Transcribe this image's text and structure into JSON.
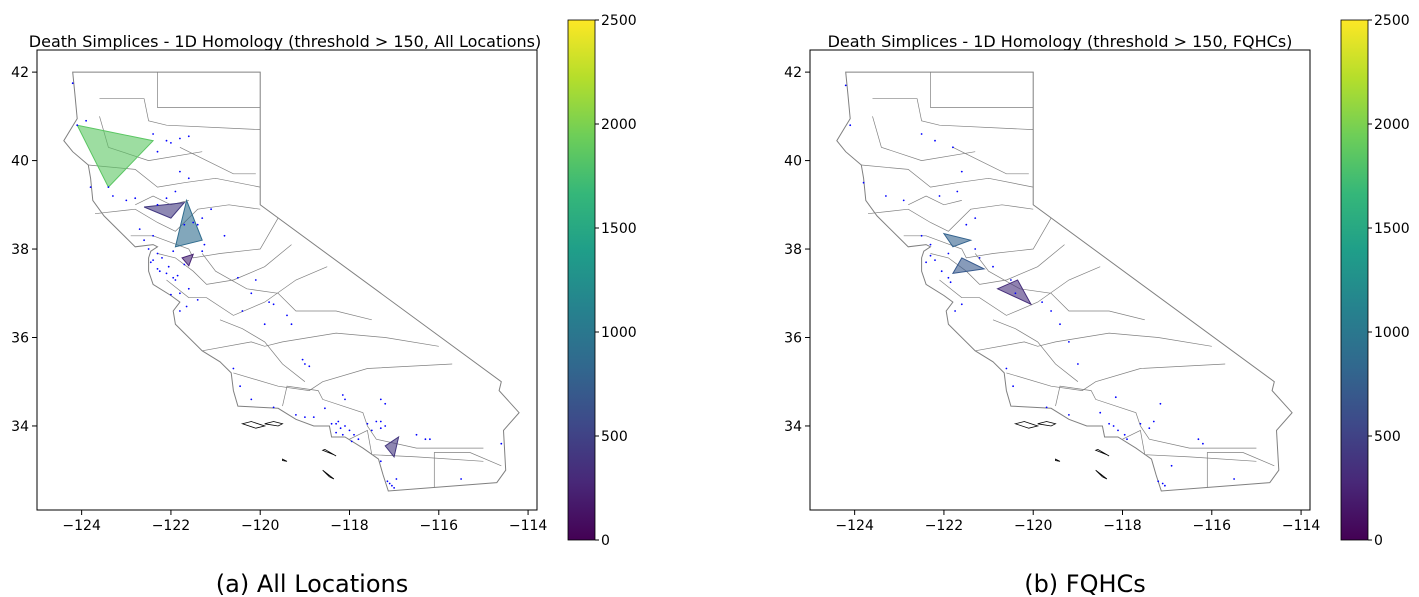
{
  "colorscale": {
    "name": "viridis",
    "stops": [
      "#440154",
      "#482878",
      "#3e4989",
      "#31688e",
      "#26828e",
      "#1f9e89",
      "#35b779",
      "#6ece58",
      "#b5de2b",
      "#fde725"
    ],
    "range": [
      0,
      2500
    ],
    "ticks": [
      "0",
      "500",
      "1000",
      "1500",
      "2000",
      "2500"
    ]
  },
  "point_color": "#0000ff",
  "boundary_color": "#808080",
  "chart_data": [
    {
      "type": "scatter",
      "title": "Death Simplices - 1D Homology (threshold > 150, All Locations)",
      "caption": "(a) All Locations",
      "xlim": [
        -125,
        -113.8
      ],
      "ylim": [
        32.1,
        42.5
      ],
      "xticks": [
        -124,
        -122,
        -120,
        -118,
        -116,
        -114
      ],
      "yticks": [
        34,
        36,
        38,
        40,
        42
      ],
      "xtick_labels": [
        "−124",
        "−122",
        "−120",
        "−118",
        "−116",
        "−114"
      ],
      "ytick_labels": [
        "34",
        "36",
        "38",
        "40",
        "42"
      ],
      "grid": false,
      "colorbar_range": [
        0,
        2500
      ],
      "triangles": [
        {
          "death": 1850,
          "points": [
            [
              -124.1,
              40.8
            ],
            [
              -122.4,
              40.45
            ],
            [
              -123.4,
              39.4
            ]
          ]
        },
        {
          "death": 420,
          "points": [
            [
              -122.6,
              38.95
            ],
            [
              -121.7,
              39.05
            ],
            [
              -122.0,
              38.7
            ]
          ]
        },
        {
          "death": 880,
          "points": [
            [
              -121.65,
              39.1
            ],
            [
              -121.3,
              38.2
            ],
            [
              -121.9,
              38.05
            ]
          ]
        },
        {
          "death": 250,
          "points": [
            [
              -121.75,
              37.8
            ],
            [
              -121.5,
              37.88
            ],
            [
              -121.6,
              37.62
            ]
          ]
        },
        {
          "death": 400,
          "points": [
            [
              -117.2,
              33.55
            ],
            [
              -116.9,
              33.75
            ],
            [
              -117.0,
              33.3
            ]
          ]
        }
      ],
      "points": [
        [
          -122.1,
          40.45
        ],
        [
          -122.0,
          40.4
        ],
        [
          -121.8,
          40.5
        ],
        [
          -121.6,
          40.55
        ],
        [
          -122.3,
          40.2
        ],
        [
          -123.4,
          39.4
        ],
        [
          -123.3,
          39.2
        ],
        [
          -123.0,
          39.1
        ],
        [
          -122.8,
          39.15
        ],
        [
          -122.3,
          39.0
        ],
        [
          -122.1,
          39.15
        ],
        [
          -121.9,
          39.3
        ],
        [
          -121.6,
          39.6
        ],
        [
          -121.8,
          39.75
        ],
        [
          -122.4,
          38.3
        ],
        [
          -122.7,
          38.45
        ],
        [
          -122.6,
          38.2
        ],
        [
          -122.5,
          38.0
        ],
        [
          -122.3,
          37.9
        ],
        [
          -122.2,
          37.8
        ],
        [
          -122.4,
          37.75
        ],
        [
          -122.45,
          37.7
        ],
        [
          -122.3,
          37.55
        ],
        [
          -122.25,
          37.5
        ],
        [
          -122.1,
          37.45
        ],
        [
          -121.95,
          37.35
        ],
        [
          -121.9,
          37.3
        ],
        [
          -121.85,
          37.4
        ],
        [
          -122.05,
          37.6
        ],
        [
          -121.7,
          37.65
        ],
        [
          -121.3,
          37.95
        ],
        [
          -121.25,
          38.1
        ],
        [
          -121.4,
          38.55
        ],
        [
          -121.5,
          38.6
        ],
        [
          -121.3,
          38.7
        ],
        [
          -121.1,
          38.9
        ],
        [
          -120.8,
          38.3
        ],
        [
          -120.5,
          37.35
        ],
        [
          -120.1,
          37.3
        ],
        [
          -120.2,
          37.0
        ],
        [
          -119.8,
          36.8
        ],
        [
          -119.7,
          36.75
        ],
        [
          -119.3,
          36.3
        ],
        [
          -119.4,
          36.5
        ],
        [
          -119.9,
          36.3
        ],
        [
          -119.0,
          35.4
        ],
        [
          -118.9,
          35.35
        ],
        [
          -119.05,
          35.5
        ],
        [
          -120.4,
          36.6
        ],
        [
          -120.6,
          35.3
        ],
        [
          -120.45,
          34.9
        ],
        [
          -120.2,
          34.6
        ],
        [
          -119.7,
          34.42
        ],
        [
          -119.2,
          34.25
        ],
        [
          -119.0,
          34.2
        ],
        [
          -118.8,
          34.2
        ],
        [
          -118.55,
          34.4
        ],
        [
          -118.4,
          34.05
        ],
        [
          -118.3,
          34.05
        ],
        [
          -118.25,
          34.1
        ],
        [
          -118.2,
          33.95
        ],
        [
          -118.1,
          34.0
        ],
        [
          -118.15,
          33.8
        ],
        [
          -118.3,
          33.85
        ],
        [
          -118.0,
          33.9
        ],
        [
          -117.9,
          33.8
        ],
        [
          -117.8,
          33.7
        ],
        [
          -117.95,
          33.65
        ],
        [
          -117.6,
          34.05
        ],
        [
          -117.4,
          34.1
        ],
        [
          -117.3,
          34.1
        ],
        [
          -117.2,
          34.0
        ],
        [
          -117.3,
          33.95
        ],
        [
          -117.5,
          33.9
        ],
        [
          -117.3,
          33.2
        ],
        [
          -117.15,
          32.75
        ],
        [
          -117.1,
          32.7
        ],
        [
          -117.05,
          32.65
        ],
        [
          -117.0,
          32.6
        ],
        [
          -116.95,
          32.8
        ],
        [
          -115.5,
          32.8
        ],
        [
          -114.6,
          33.6
        ],
        [
          -116.5,
          33.8
        ],
        [
          -116.3,
          33.7
        ],
        [
          -116.2,
          33.7
        ],
        [
          -117.2,
          34.5
        ],
        [
          -117.3,
          34.6
        ],
        [
          -118.1,
          34.6
        ],
        [
          -118.15,
          34.7
        ],
        [
          -121.8,
          36.6
        ],
        [
          -121.65,
          36.7
        ],
        [
          -121.8,
          37.0
        ],
        [
          -122.0,
          36.97
        ],
        [
          -121.4,
          36.85
        ],
        [
          -121.6,
          37.1
        ],
        [
          -123.8,
          39.4
        ],
        [
          -124.1,
          40.8
        ],
        [
          -123.9,
          40.9
        ],
        [
          -124.2,
          41.75
        ],
        [
          -122.4,
          40.6
        ],
        [
          -121.95,
          37.95
        ],
        [
          -121.7,
          38.55
        ]
      ]
    },
    {
      "type": "scatter",
      "title": "Death Simplices - 1D Homology (threshold > 150, FQHCs)",
      "caption": "(b) FQHCs",
      "xlim": [
        -125,
        -113.8
      ],
      "ylim": [
        32.1,
        42.5
      ],
      "xticks": [
        -124,
        -122,
        -120,
        -118,
        -116,
        -114
      ],
      "yticks": [
        34,
        36,
        38,
        40,
        42
      ],
      "xtick_labels": [
        "−124",
        "−122",
        "−120",
        "−118",
        "−116",
        "−114"
      ],
      "ytick_labels": [
        "34",
        "36",
        "38",
        "40",
        "42"
      ],
      "grid": false,
      "colorbar_range": [
        0,
        2500
      ],
      "triangles": [
        {
          "death": 780,
          "points": [
            [
              -122.0,
              38.35
            ],
            [
              -121.4,
              38.2
            ],
            [
              -121.8,
              38.05
            ]
          ]
        },
        {
          "death": 700,
          "points": [
            [
              -121.6,
              37.8
            ],
            [
              -121.1,
              37.55
            ],
            [
              -121.8,
              37.45
            ]
          ]
        },
        {
          "death": 330,
          "points": [
            [
              -120.8,
              37.1
            ],
            [
              -120.35,
              37.3
            ],
            [
              -120.05,
              36.75
            ]
          ]
        }
      ],
      "points": [
        [
          -122.2,
          40.45
        ],
        [
          -121.8,
          40.3
        ],
        [
          -122.5,
          40.6
        ],
        [
          -123.3,
          39.2
        ],
        [
          -122.9,
          39.1
        ],
        [
          -122.1,
          39.2
        ],
        [
          -121.7,
          39.3
        ],
        [
          -121.6,
          39.75
        ],
        [
          -122.5,
          38.3
        ],
        [
          -122.3,
          38.1
        ],
        [
          -122.3,
          37.85
        ],
        [
          -122.2,
          37.75
        ],
        [
          -122.4,
          37.7
        ],
        [
          -122.05,
          37.5
        ],
        [
          -121.9,
          37.35
        ],
        [
          -121.85,
          37.25
        ],
        [
          -121.5,
          38.55
        ],
        [
          -121.3,
          38.0
        ],
        [
          -121.2,
          37.8
        ],
        [
          -120.9,
          37.6
        ],
        [
          -120.5,
          37.3
        ],
        [
          -120.4,
          37.0
        ],
        [
          -119.8,
          36.8
        ],
        [
          -119.6,
          36.6
        ],
        [
          -119.4,
          36.3
        ],
        [
          -119.2,
          35.9
        ],
        [
          -119.0,
          35.4
        ],
        [
          -120.6,
          35.3
        ],
        [
          -120.45,
          34.9
        ],
        [
          -119.7,
          34.42
        ],
        [
          -119.2,
          34.25
        ],
        [
          -118.5,
          34.3
        ],
        [
          -118.3,
          34.05
        ],
        [
          -118.2,
          34.0
        ],
        [
          -118.1,
          33.9
        ],
        [
          -117.95,
          33.8
        ],
        [
          -117.9,
          33.7
        ],
        [
          -117.6,
          34.05
        ],
        [
          -117.3,
          34.1
        ],
        [
          -117.4,
          33.95
        ],
        [
          -117.2,
          32.75
        ],
        [
          -117.1,
          32.7
        ],
        [
          -117.05,
          32.65
        ],
        [
          -116.9,
          33.1
        ],
        [
          -115.5,
          32.8
        ],
        [
          -116.3,
          33.7
        ],
        [
          -116.2,
          33.6
        ],
        [
          -117.15,
          34.5
        ],
        [
          -118.15,
          34.65
        ],
        [
          -121.75,
          36.6
        ],
        [
          -121.6,
          36.75
        ],
        [
          -123.8,
          39.5
        ],
        [
          -124.1,
          40.8
        ],
        [
          -124.2,
          41.7
        ],
        [
          -121.9,
          37.9
        ],
        [
          -121.3,
          38.7
        ]
      ]
    }
  ]
}
